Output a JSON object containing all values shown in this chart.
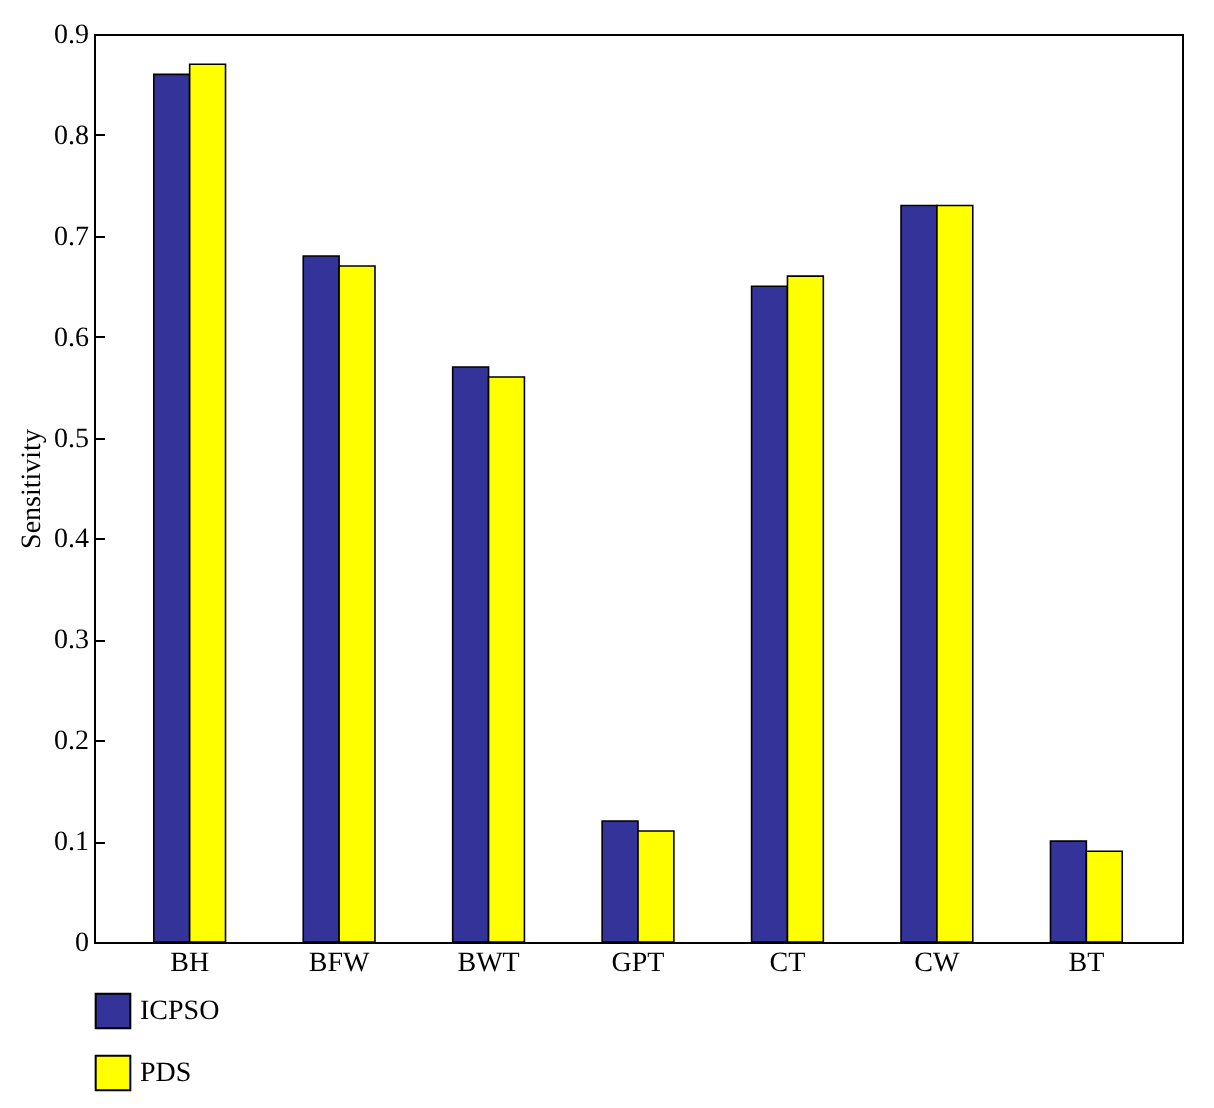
{
  "chart_data": {
    "type": "bar",
    "ylabel": "Sensitivity",
    "categories": [
      "BH",
      "BFW",
      "BWT",
      "GPT",
      "CT",
      "CW",
      "BT"
    ],
    "series": [
      {
        "name": "ICPSO",
        "color": "#333399",
        "values": [
          0.86,
          0.68,
          0.57,
          0.12,
          0.65,
          0.73,
          0.1
        ]
      },
      {
        "name": "PDS",
        "color": "#ffff00",
        "values": [
          0.87,
          0.67,
          0.56,
          0.11,
          0.66,
          0.73,
          0.09
        ]
      }
    ],
    "ylim": [
      0,
      0.9
    ],
    "yticks": [
      0,
      0.1,
      0.2,
      0.3,
      0.4,
      0.5,
      0.6,
      0.7,
      0.8,
      0.9
    ],
    "grid": false,
    "legend": "bottom left"
  }
}
